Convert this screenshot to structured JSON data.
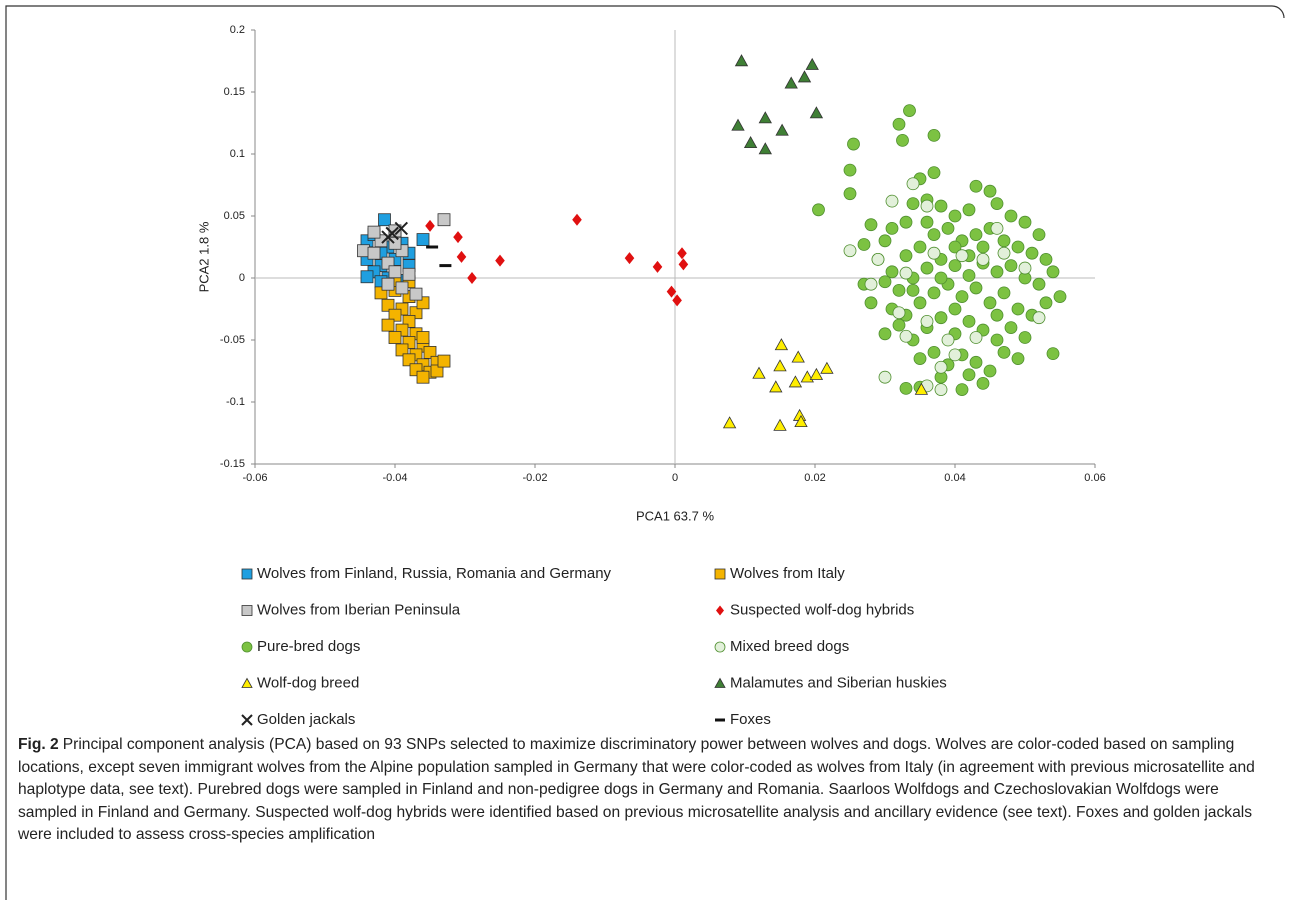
{
  "chart_data": {
    "type": "scatter",
    "xlabel": "PCA1 63.7 %",
    "ylabel": "PCA2 1.8 %",
    "xlim": [
      -0.06,
      0.06
    ],
    "xticks": [
      -0.06,
      -0.04,
      -0.02,
      0,
      0.02,
      0.04,
      0.06
    ],
    "ylim": [
      -0.15,
      0.2
    ],
    "yticks": [
      -0.15,
      -0.1,
      -0.05,
      0,
      0.05,
      0.1,
      0.15,
      0.2
    ],
    "zero_lines": true,
    "series": [
      {
        "name": "Wolves from Finland, Russia, Romania and Germany",
        "color": "#1f9fe0",
        "marker": "square",
        "x": [
          -0.0415,
          -0.044,
          -0.043,
          -0.041,
          -0.039,
          -0.044,
          -0.042,
          -0.043,
          -0.04,
          -0.038,
          -0.041,
          -0.039,
          -0.042,
          -0.04,
          -0.038,
          -0.036,
          -0.044,
          -0.042
        ],
        "values": [
          0.047,
          0.03,
          0.035,
          0.025,
          0.028,
          0.015,
          0.01,
          0.005,
          0.015,
          0.01,
          0.0,
          -0.002,
          0.02,
          0.033,
          0.02,
          0.031,
          0.001,
          -0.003
        ]
      },
      {
        "name": "Wolves from Italy",
        "color": "#f4b400",
        "marker": "square",
        "x": [
          -0.042,
          -0.04,
          -0.038,
          -0.041,
          -0.039,
          -0.037,
          -0.04,
          -0.038,
          -0.041,
          -0.039,
          -0.037,
          -0.04,
          -0.038,
          -0.036,
          -0.039,
          -0.037,
          -0.035,
          -0.038,
          -0.036,
          -0.034,
          -0.037,
          -0.035,
          -0.036,
          -0.034,
          -0.036,
          -0.033,
          -0.036,
          -0.038,
          -0.04
        ],
        "values": [
          -0.012,
          -0.01,
          -0.015,
          -0.022,
          -0.025,
          -0.028,
          -0.03,
          -0.035,
          -0.038,
          -0.042,
          -0.045,
          -0.048,
          -0.052,
          -0.055,
          -0.058,
          -0.062,
          -0.06,
          -0.066,
          -0.07,
          -0.068,
          -0.074,
          -0.076,
          -0.08,
          -0.075,
          -0.048,
          -0.067,
          -0.02,
          -0.003,
          -0.002
        ]
      },
      {
        "name": "Wolves from Iberian Peninsula",
        "color": "#c8c8c8",
        "marker": "square",
        "x": [
          -0.0445,
          -0.043,
          -0.041,
          -0.042,
          -0.04,
          -0.039,
          -0.04,
          -0.038,
          -0.041,
          -0.037,
          -0.043,
          -0.039,
          -0.033,
          -0.04
        ],
        "values": [
          0.022,
          0.02,
          0.012,
          0.03,
          0.038,
          0.022,
          0.005,
          0.003,
          -0.005,
          -0.013,
          0.037,
          -0.008,
          0.047,
          0.028
        ]
      },
      {
        "name": "Suspected wolf-dog hybrids",
        "color": "#e01010",
        "marker": "diamond",
        "x": [
          -0.035,
          -0.031,
          -0.0305,
          -0.029,
          -0.025,
          -0.014,
          -0.0065,
          -0.0025,
          0.001,
          0.0012,
          -0.0005,
          0.0003
        ],
        "values": [
          0.042,
          0.033,
          0.017,
          0.0,
          0.014,
          0.047,
          0.016,
          0.009,
          0.02,
          0.011,
          -0.011,
          -0.018
        ]
      },
      {
        "name": "Pure-bred dogs",
        "color": "#7cc242",
        "marker": "circle",
        "x": [
          0.0335,
          0.032,
          0.0325,
          0.037,
          0.0255,
          0.025,
          0.025,
          0.0205,
          0.035,
          0.037,
          0.054,
          0.033,
          0.035,
          0.041,
          0.044,
          0.027,
          0.028,
          0.03,
          0.031,
          0.033,
          0.034,
          0.036,
          0.038,
          0.04,
          0.042,
          0.043,
          0.045,
          0.046,
          0.048,
          0.05,
          0.052,
          0.029,
          0.031,
          0.033,
          0.035,
          0.037,
          0.039,
          0.041,
          0.043,
          0.045,
          0.047,
          0.049,
          0.051,
          0.053,
          0.054,
          0.027,
          0.03,
          0.032,
          0.034,
          0.036,
          0.038,
          0.04,
          0.042,
          0.044,
          0.046,
          0.048,
          0.05,
          0.052,
          0.055,
          0.028,
          0.031,
          0.033,
          0.035,
          0.037,
          0.039,
          0.041,
          0.043,
          0.045,
          0.047,
          0.049,
          0.051,
          0.053,
          0.03,
          0.032,
          0.034,
          0.036,
          0.038,
          0.04,
          0.042,
          0.044,
          0.046,
          0.048,
          0.05,
          0.035,
          0.037,
          0.039,
          0.041,
          0.043,
          0.045,
          0.047,
          0.049,
          0.038,
          0.042,
          0.036,
          0.04,
          0.044,
          0.038,
          0.042,
          0.046,
          0.04,
          0.034
        ],
        "values": [
          0.135,
          0.124,
          0.111,
          0.115,
          0.108,
          0.087,
          0.068,
          0.055,
          0.08,
          0.085,
          -0.061,
          -0.089,
          -0.088,
          -0.09,
          -0.085,
          0.027,
          0.043,
          0.03,
          0.04,
          0.045,
          0.06,
          0.063,
          0.058,
          0.05,
          0.055,
          0.074,
          0.07,
          0.06,
          0.05,
          0.045,
          0.035,
          0.015,
          0.005,
          0.018,
          0.025,
          0.035,
          0.04,
          0.03,
          0.035,
          0.04,
          0.03,
          0.025,
          0.02,
          0.015,
          0.005,
          -0.005,
          -0.003,
          -0.01,
          0.0,
          0.008,
          0.015,
          0.01,
          0.018,
          0.012,
          0.005,
          0.01,
          0.0,
          -0.005,
          -0.015,
          -0.02,
          -0.025,
          -0.03,
          -0.02,
          -0.012,
          -0.005,
          -0.015,
          -0.008,
          -0.02,
          -0.012,
          -0.025,
          -0.03,
          -0.02,
          -0.045,
          -0.038,
          -0.05,
          -0.04,
          -0.032,
          -0.045,
          -0.035,
          -0.042,
          -0.05,
          -0.04,
          -0.048,
          -0.065,
          -0.06,
          -0.07,
          -0.062,
          -0.068,
          -0.075,
          -0.06,
          -0.065,
          -0.08,
          -0.078,
          0.045,
          0.025,
          0.025,
          0.0,
          0.002,
          -0.03,
          -0.025,
          -0.01
        ]
      },
      {
        "name": "Mixed breed dogs",
        "color": "#e2f0da",
        "marker": "circle",
        "x": [
          0.034,
          0.031,
          0.036,
          0.025,
          0.029,
          0.033,
          0.037,
          0.041,
          0.044,
          0.047,
          0.05,
          0.032,
          0.036,
          0.033,
          0.039,
          0.043,
          0.052,
          0.03,
          0.038,
          0.036,
          0.038,
          0.04,
          0.028,
          0.046
        ],
        "values": [
          0.076,
          0.062,
          0.058,
          0.022,
          0.015,
          0.004,
          0.02,
          0.018,
          0.015,
          0.02,
          0.008,
          -0.028,
          -0.035,
          -0.047,
          -0.05,
          -0.048,
          -0.032,
          -0.08,
          -0.072,
          -0.087,
          -0.09,
          -0.062,
          -0.005,
          0.04
        ]
      },
      {
        "name": "Wolf-dog breed",
        "color": "#ffee00",
        "marker": "triangle",
        "x": [
          0.0152,
          0.015,
          0.0176,
          0.012,
          0.0144,
          0.0172,
          0.0189,
          0.0202,
          0.0217,
          0.0078,
          0.0178,
          0.018,
          0.015,
          0.0352
        ],
        "values": [
          -0.054,
          -0.071,
          -0.064,
          -0.077,
          -0.088,
          -0.084,
          -0.08,
          -0.078,
          -0.073,
          -0.117,
          -0.111,
          -0.116,
          -0.119,
          -0.09
        ]
      },
      {
        "name": "Malamutes and Siberian huskies",
        "color": "#3f7f35",
        "marker": "triangle",
        "x": [
          0.0095,
          0.0185,
          0.0196,
          0.0166,
          0.009,
          0.0129,
          0.0108,
          0.0129,
          0.0153,
          0.0202
        ],
        "values": [
          0.175,
          0.162,
          0.172,
          0.157,
          0.123,
          0.129,
          0.109,
          0.104,
          0.119,
          0.133
        ]
      },
      {
        "name": "Golden jackals",
        "color": "#222222",
        "marker": "x",
        "x": [
          -0.0404,
          -0.0391,
          -0.041
        ],
        "values": [
          0.036,
          0.04,
          0.033
        ]
      },
      {
        "name": "Foxes",
        "color": "#111111",
        "marker": "dash",
        "x": [
          -0.0347,
          -0.0328
        ],
        "values": [
          0.025,
          0.01
        ]
      }
    ]
  },
  "caption_label": "Fig. 2",
  "caption": "Principal component analysis (PCA) based on 93 SNPs selected to maximize discriminatory power between wolves and dogs. Wolves are color-coded based on sampling locations, except seven immigrant wolves from the Alpine population sampled in Germany that were color-coded as wolves from Italy (in agreement with previous microsatellite and haplotype data, see text). Purebred dogs were sampled in Finland and non-pedigree dogs in Germany and Romania. Saarloos Wolfdogs and Czechoslovakian Wolfdogs were sampled in Finland and Germany. Suspected wolf-dog hybrids were identified based on previous microsatellite analysis and ancillary evidence (see text). Foxes and golden jackals were included to assess cross-species amplification"
}
